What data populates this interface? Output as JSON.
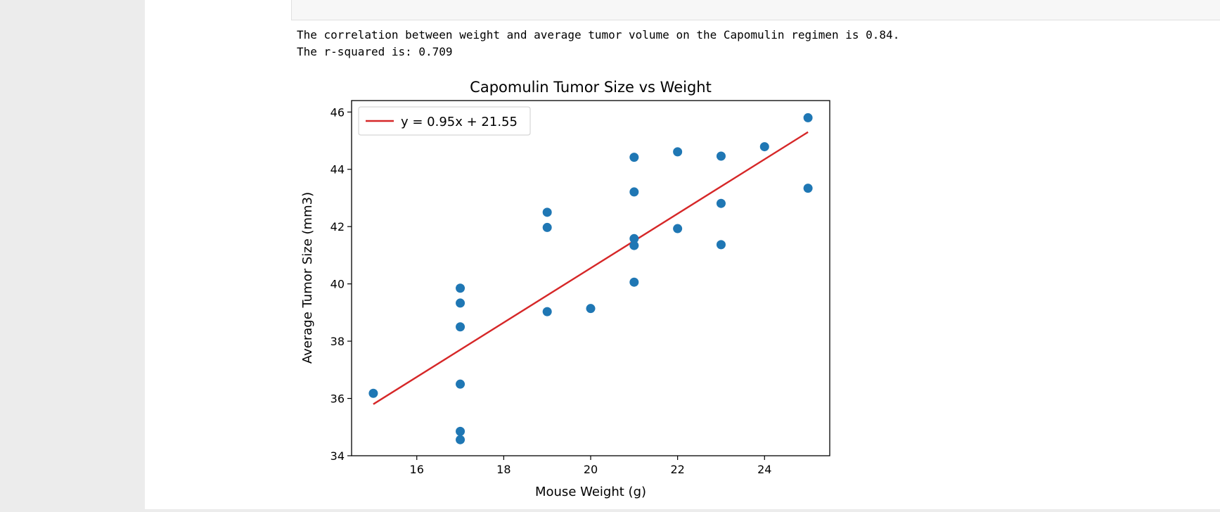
{
  "output": {
    "lines": [
      "The correlation between weight and average tumor volume on the Capomulin regimen is 0.84.",
      "The r-squared is: 0.709"
    ]
  },
  "chart_data": {
    "type": "scatter",
    "title": "Capomulin Tumor Size vs Weight",
    "xlabel": "Mouse Weight (g)",
    "ylabel": "Average Tumor Size (mm3)",
    "xlim": [
      14.5,
      25.5
    ],
    "ylim": [
      34,
      46.4
    ],
    "xticks": [
      16,
      18,
      20,
      22,
      24
    ],
    "yticks": [
      34,
      36,
      38,
      40,
      42,
      44,
      46
    ],
    "grid": false,
    "legend_position": "top-left",
    "point_color": "#1f77b4",
    "line_color": "#d62728",
    "points": [
      {
        "x": 15,
        "y": 36.18
      },
      {
        "x": 17,
        "y": 39.85
      },
      {
        "x": 17,
        "y": 39.33
      },
      {
        "x": 17,
        "y": 38.5
      },
      {
        "x": 17,
        "y": 36.5
      },
      {
        "x": 17,
        "y": 34.85
      },
      {
        "x": 17,
        "y": 34.56
      },
      {
        "x": 19,
        "y": 42.5
      },
      {
        "x": 19,
        "y": 41.97
      },
      {
        "x": 19,
        "y": 39.03
      },
      {
        "x": 20,
        "y": 39.14
      },
      {
        "x": 21,
        "y": 44.42
      },
      {
        "x": 21,
        "y": 43.21
      },
      {
        "x": 21,
        "y": 41.58
      },
      {
        "x": 21,
        "y": 41.34
      },
      {
        "x": 21,
        "y": 40.06
      },
      {
        "x": 22,
        "y": 44.61
      },
      {
        "x": 22,
        "y": 41.93
      },
      {
        "x": 23,
        "y": 44.46
      },
      {
        "x": 23,
        "y": 42.81
      },
      {
        "x": 23,
        "y": 41.37
      },
      {
        "x": 24,
        "y": 44.79
      },
      {
        "x": 25,
        "y": 45.8
      },
      {
        "x": 25,
        "y": 43.34
      }
    ],
    "regression": {
      "label": "y = 0.95x + 21.55",
      "slope": 0.95,
      "intercept": 21.55,
      "x_range": [
        15,
        25
      ]
    }
  }
}
